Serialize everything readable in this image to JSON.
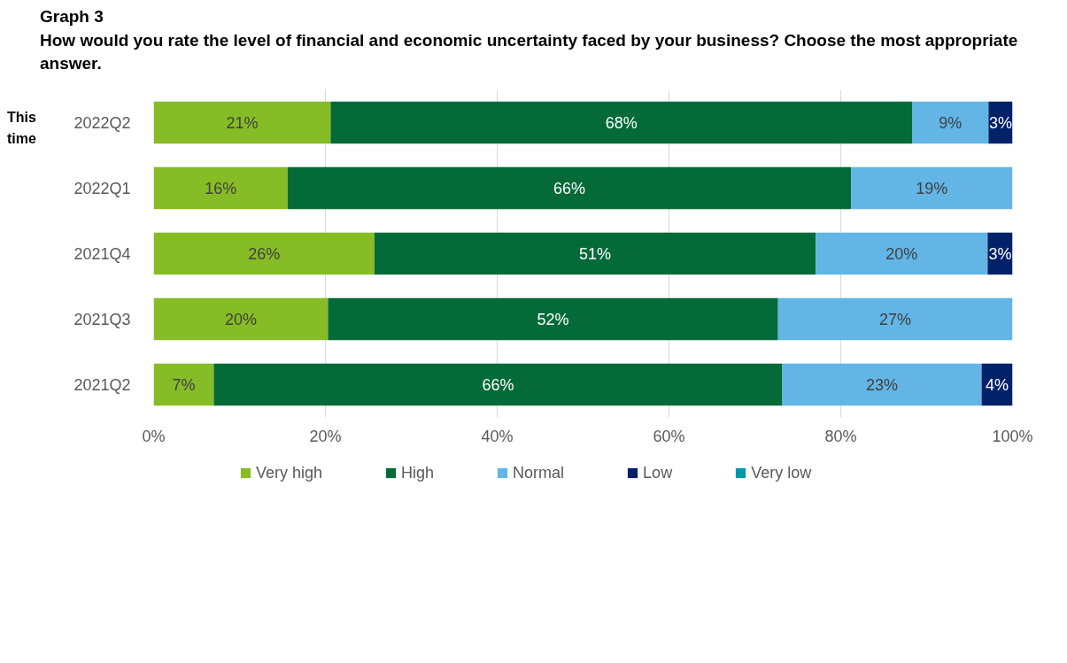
{
  "chart_data": {
    "type": "bar",
    "orientation": "horizontal",
    "stacked": true,
    "title": "Graph 3",
    "subtitle": "How would you rate the level of financial and economic uncertainty faced by your business? Choose the most appropriate answer.",
    "categories": [
      "2022Q2",
      "2022Q1",
      "2021Q4",
      "2021Q3",
      "2021Q2"
    ],
    "series": [
      {
        "name": "Very high",
        "color": "#86bc25",
        "values": [
          20.6,
          15.6,
          25.7,
          20.3,
          7.0
        ],
        "value_labels": [
          "21%",
          "16%",
          "26%",
          "20%",
          "7%"
        ]
      },
      {
        "name": "High",
        "color": "#046a38",
        "values": [
          67.7,
          65.6,
          51.4,
          52.4,
          66.2
        ],
        "value_labels": [
          "68%",
          "66%",
          "51%",
          "52%",
          "66%"
        ]
      },
      {
        "name": "Normal",
        "color": "#62b5e5",
        "values": [
          8.9,
          18.8,
          20.0,
          27.3,
          23.2
        ],
        "value_labels": [
          "9%",
          "19%",
          "20%",
          "27%",
          "23%"
        ]
      },
      {
        "name": "Low",
        "color": "#012169",
        "values": [
          2.8,
          null,
          2.9,
          null,
          3.6
        ],
        "value_labels": [
          "3%",
          null,
          "3%",
          null,
          "4%"
        ]
      },
      {
        "name": "Very low",
        "color": "#0097a9",
        "values": [
          null,
          null,
          null,
          null,
          null
        ]
      }
    ],
    "xlim": [
      0,
      100
    ],
    "xticks": [
      {
        "value": 0,
        "label": "0%"
      },
      {
        "value": 20,
        "label": "20%"
      },
      {
        "value": 40,
        "label": "40%"
      },
      {
        "value": 60,
        "label": "60%"
      },
      {
        "value": 80,
        "label": "80%"
      },
      {
        "value": 100,
        "label": "100%"
      }
    ],
    "grid": "x",
    "legend": "bottom",
    "annotations": [
      "This time"
    ]
  }
}
